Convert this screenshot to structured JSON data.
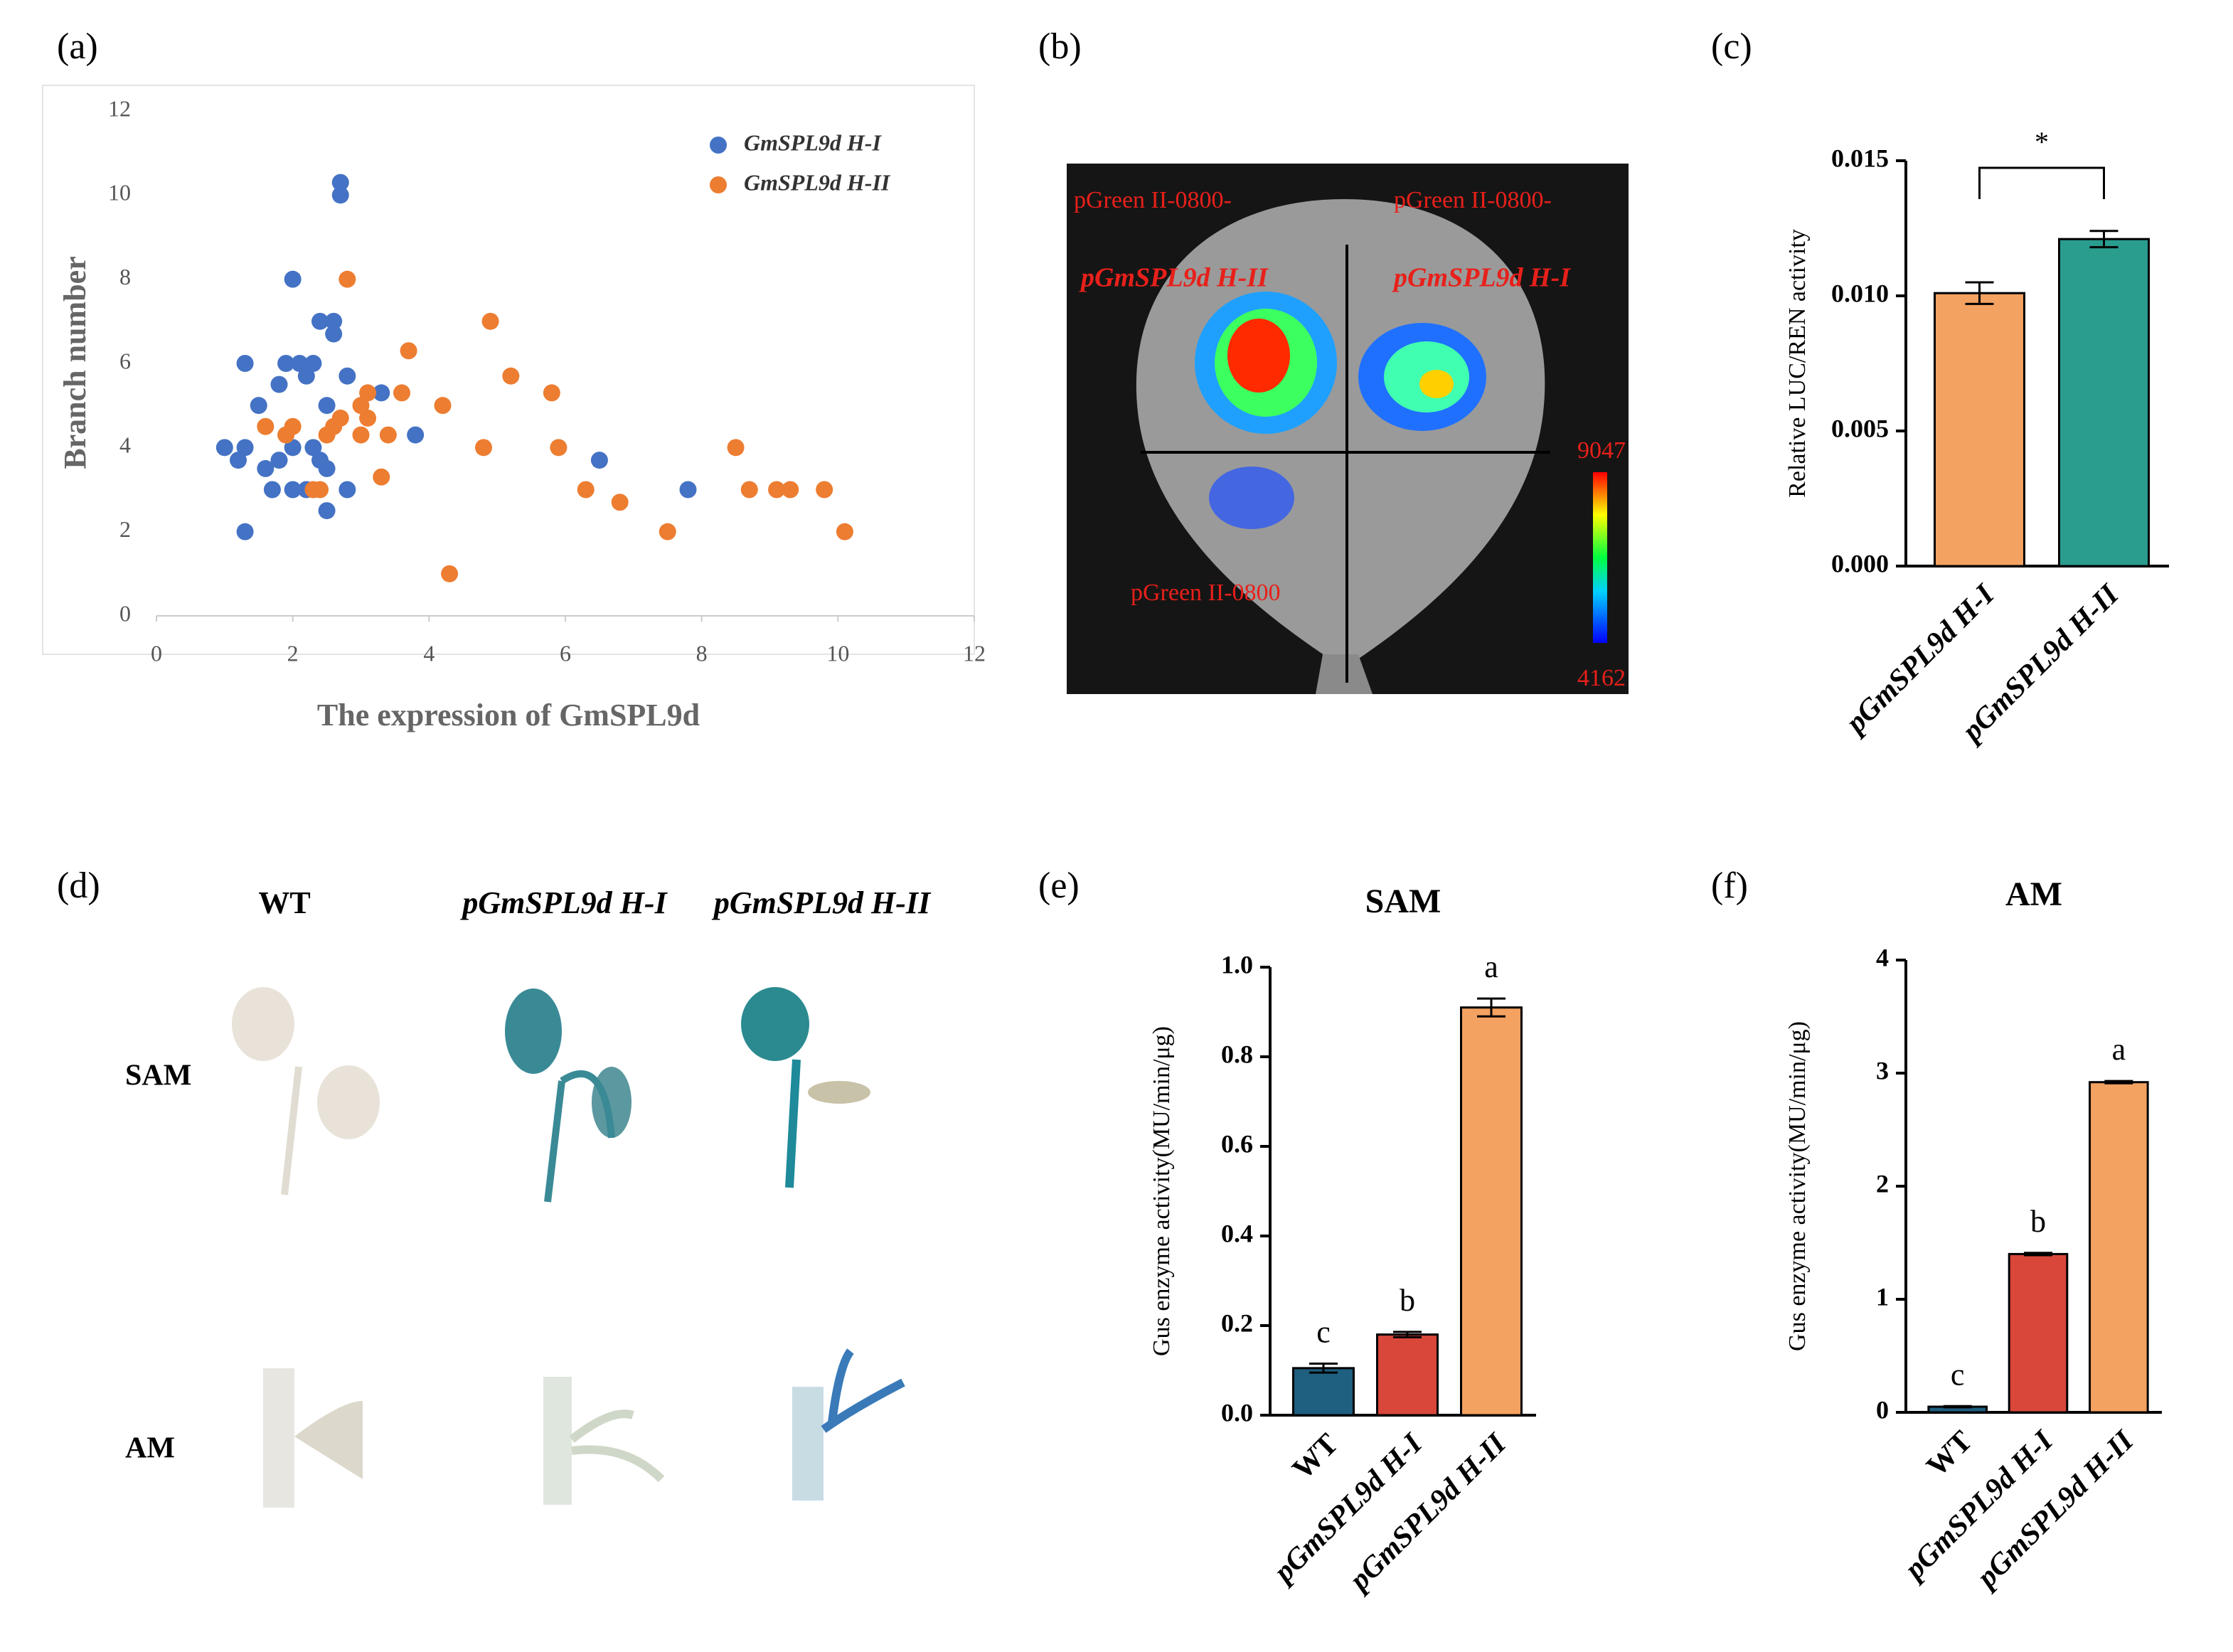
{
  "chart_data": [
    {
      "type": "scatter",
      "label": "(a)",
      "xlabel": "The expression of GmSPL9d",
      "ylabel": "Branch number",
      "xlim": [
        0,
        12
      ],
      "xticks": [
        0,
        2,
        4,
        6,
        8,
        10,
        12
      ],
      "ylim": [
        0,
        12
      ],
      "yticks": [
        0,
        2,
        4,
        6,
        8,
        10,
        12
      ],
      "grid": false,
      "legend": "upper right",
      "series": [
        {
          "name": "GmSPL9d H-I",
          "color": "#4472c4",
          "x": [
            1,
            1.2,
            1.3,
            1.3,
            1.3,
            1.5,
            1.6,
            1.7,
            1.8,
            1.8,
            1.9,
            2,
            2,
            2,
            2.1,
            2.2,
            2.2,
            2.3,
            2.3,
            2.4,
            2.4,
            2.5,
            2.5,
            2.5,
            2.6,
            2.6,
            2.7,
            2.7,
            2.8,
            2.8,
            3.3,
            3.8,
            6.5,
            7.8
          ],
          "values": [
            4,
            3.7,
            4,
            6,
            2,
            5,
            3.5,
            3,
            3.7,
            5.5,
            6,
            8,
            4,
            3,
            6,
            5.7,
            3,
            6,
            4,
            7,
            3.7,
            5,
            3.5,
            2.5,
            7,
            6.7,
            10.3,
            10,
            5.7,
            3,
            5.3,
            4.3,
            3.7,
            3
          ]
        },
        {
          "name": "GmSPL9d H-II",
          "color": "#ed7d31",
          "x": [
            1.6,
            1.9,
            2,
            2.3,
            2.4,
            2.5,
            2.6,
            2.7,
            2.8,
            3,
            3,
            3.1,
            3.1,
            3.3,
            3.4,
            3.6,
            3.7,
            4.2,
            4.3,
            4.8,
            4.9,
            5.2,
            5.8,
            5.9,
            6.3,
            6.8,
            7.5,
            8.5,
            8.7,
            9.1,
            9.3,
            9.8,
            10.1
          ],
          "values": [
            4.5,
            4.3,
            4.5,
            3,
            3,
            4.3,
            4.5,
            4.7,
            8,
            5,
            4.3,
            5.3,
            4.7,
            3.3,
            4.3,
            5.3,
            6.3,
            5,
            1,
            4,
            7,
            5.7,
            5.3,
            4,
            3,
            2.7,
            2,
            4,
            3,
            3,
            3,
            3,
            2
          ]
        }
      ]
    },
    {
      "type": "bar",
      "label": "(c)",
      "ylabel": "Relative LUC/REN activity",
      "annotation": "*",
      "categories": [
        "pGmSPL9d H-I",
        "pGmSPL9d H-II"
      ],
      "values": [
        0.0101,
        0.0121
      ],
      "errors": [
        0.0004,
        0.0003
      ],
      "colors": [
        "#f4a261",
        "#2a9d8f"
      ],
      "ylim": [
        0,
        0.015
      ],
      "yticks": [
        {
          "value": 0,
          "label": "0.000"
        },
        {
          "value": 0.005,
          "label": "0.005"
        },
        {
          "value": 0.01,
          "label": "0.010"
        },
        {
          "value": 0.015,
          "label": "0.015"
        }
      ]
    },
    {
      "type": "bar",
      "label": "(e)",
      "title": "SAM",
      "ylabel": "Gus enzyme activity(MU/min/μg)",
      "categories": [
        "WT",
        "pGmSPL9d H-I",
        "pGmSPL9d H-II"
      ],
      "values": [
        0.105,
        0.18,
        0.91
      ],
      "errors": [
        0.01,
        0.006,
        0.02
      ],
      "letters": [
        "c",
        "b",
        "a"
      ],
      "colors": [
        "#1f5f80",
        "#d9473a",
        "#f4a261"
      ],
      "ylim": [
        0,
        1
      ],
      "yticks": [
        {
          "value": 0,
          "label": "0.0"
        },
        {
          "value": 0.2,
          "label": "0.2"
        },
        {
          "value": 0.4,
          "label": "0.4"
        },
        {
          "value": 0.6,
          "label": "0.6"
        },
        {
          "value": 0.8,
          "label": "0.8"
        },
        {
          "value": 1,
          "label": "1.0"
        }
      ]
    },
    {
      "type": "bar",
      "label": "(f)",
      "title": "AM",
      "ylabel": "Gus enzyme activity(MU/min/μg)",
      "categories": [
        "WT",
        "pGmSPL9d H-I",
        "pGmSPL9d H-II"
      ],
      "values": [
        0.05,
        1.4,
        2.92
      ],
      "errors": [
        0.005,
        0.01,
        0.01
      ],
      "letters": [
        "c",
        "b",
        "a"
      ],
      "colors": [
        "#1f5f80",
        "#d9473a",
        "#f4a261"
      ],
      "ylim": [
        0,
        4
      ],
      "yticks": [
        0,
        1,
        2,
        3,
        4
      ]
    }
  ],
  "image_b": {
    "label": "(b)",
    "top_left": "pGreen II-0800-",
    "top_right": "pGreen II-0800-",
    "left_construct": "pGmSPL9d H-II",
    "right_construct": "pGmSPL9d H-I",
    "bottom": "pGreen II-0800",
    "scale_max": "9047",
    "scale_min": "4162"
  },
  "image_d": {
    "label": "(d)",
    "columns": [
      "WT",
      "pGmSPL9d H-I",
      "pGmSPL9d H-II"
    ],
    "rows": [
      "SAM",
      "AM"
    ]
  }
}
